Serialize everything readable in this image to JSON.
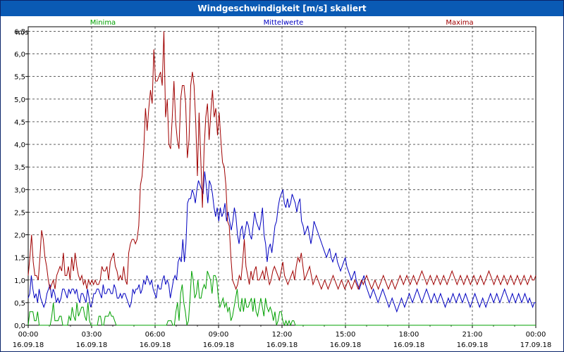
{
  "window": {
    "title": "Windgeschwindigkeit [m/s] skaliert"
  },
  "chart_data": {
    "type": "line",
    "title": "Windgeschwindigkeit [m/s] skaliert",
    "ylabel": "m/s",
    "ylim": [
      0,
      6.6
    ],
    "xlim": [
      "16.09.18 00:00",
      "17.09.18 00:00"
    ],
    "yticks": [
      "0,0",
      "0,5",
      "1,0",
      "1,5",
      "2,0",
      "2,5",
      "3,0",
      "3,5",
      "4,0",
      "4,5",
      "5,0",
      "5,5",
      "6,0",
      "6,5"
    ],
    "xticks": [
      {
        "time": "00:00",
        "date": "16.09.18"
      },
      {
        "time": "03:00",
        "date": "16.09.18"
      },
      {
        "time": "06:00",
        "date": "16.09.18"
      },
      {
        "time": "09:00",
        "date": "16.09.18"
      },
      {
        "time": "12:00",
        "date": "16.09.18"
      },
      {
        "time": "15:00",
        "date": "16.09.18"
      },
      {
        "time": "18:00",
        "date": "16.09.18"
      },
      {
        "time": "21:00",
        "date": "16.09.18"
      },
      {
        "time": "00:00",
        "date": "17.09.18"
      }
    ],
    "grid": true,
    "series": [
      {
        "name": "Minima",
        "color": "#00a000",
        "values": [
          0.0,
          0.3,
          0.3,
          0.3,
          0.1,
          0.1,
          0.3,
          0.0,
          0.0,
          0.0,
          0.0,
          0.0,
          0.0,
          0.0,
          0.0,
          0.2,
          0.5,
          0.1,
          0.1,
          0.1,
          0.2,
          0.2,
          0.0,
          0.0,
          0.0,
          0.0,
          0.2,
          0.1,
          0.4,
          0.2,
          0.1,
          0.5,
          0.2,
          0.3,
          0.4,
          0.4,
          0.2,
          0.1,
          0.5,
          0.1,
          0.0,
          0.0,
          0.0,
          0.0,
          0.0,
          0.2,
          0.2,
          0.0,
          0.0,
          0.2,
          0.2,
          0.2,
          0.3,
          0.2,
          0.2,
          0.1,
          0.0,
          0.0,
          0.0,
          0.0,
          0.0,
          0.0,
          0.0,
          0.0,
          0.0,
          0.0,
          0.0,
          0.0,
          0.0,
          0.0,
          0.0,
          0.0,
          0.0,
          0.0,
          0.0,
          0.0,
          0.0,
          0.0,
          0.0,
          0.0,
          0.0,
          0.0,
          0.0,
          0.0,
          0.0,
          0.0,
          0.0,
          0.0,
          0.0,
          0.1,
          0.1,
          0.1,
          0.0,
          0.0,
          0.3,
          0.5,
          0.1,
          0.7,
          0.9,
          0.5,
          0.3,
          0.0,
          0.1,
          0.6,
          1.2,
          1.0,
          0.6,
          0.7,
          1.0,
          0.6,
          0.6,
          0.8,
          0.9,
          0.8,
          1.2,
          1.1,
          1.0,
          0.7,
          1.1,
          1.1,
          1.0,
          0.6,
          0.4,
          0.5,
          0.6,
          0.4,
          0.5,
          0.3,
          0.4,
          0.1,
          0.2,
          0.4,
          0.6,
          0.8,
          0.4,
          0.3,
          0.6,
          0.3,
          0.6,
          0.4,
          0.4,
          0.5,
          0.6,
          0.3,
          0.6,
          0.3,
          0.2,
          0.4,
          0.6,
          0.4,
          0.2,
          0.6,
          0.4,
          0.3,
          0.4,
          0.3,
          0.1,
          0.3,
          0.0,
          0.1,
          0.3,
          0.3,
          0.1,
          0.0,
          0.1,
          0.0,
          0.1,
          0.0,
          0.1,
          0.1,
          0.0,
          0.0,
          0.0,
          0.0,
          0.0,
          0.0,
          0.0,
          0.0,
          0.0,
          0.0,
          0.0,
          0.0,
          0.0,
          0.0,
          0.0,
          0.0,
          0.0,
          0.0,
          0.0,
          0.0,
          0.0,
          0.0,
          0.0,
          0.0,
          0.0,
          0.0,
          0.0,
          0.0,
          0.0,
          0.0,
          0.0,
          0.0,
          0.0,
          0.0,
          0.0,
          0.0,
          0.0,
          0.0,
          0.0,
          0.0,
          0.0,
          0.0,
          0.0,
          0.0,
          0.0,
          0.0,
          0.0,
          0.0,
          0.0,
          0.0,
          0.0,
          0.0,
          0.0,
          0.0,
          0.0,
          0.0,
          0.0,
          0.0,
          0.0,
          0.0,
          0.0,
          0.0,
          0.0,
          0.0,
          0.0,
          0.0,
          0.0,
          0.0,
          0.0,
          0.0,
          0.0,
          0.0,
          0.0,
          0.0,
          0.0,
          0.0,
          0.0,
          0.0,
          0.0,
          0.0,
          0.0,
          0.0,
          0.0,
          0.0,
          0.0,
          0.0,
          0.0,
          0.0,
          0.0,
          0.0,
          0.0,
          0.0,
          0.0,
          0.0,
          0.0,
          0.0,
          0.0,
          0.0,
          0.0,
          0.0,
          0.0,
          0.0,
          0.0,
          0.0,
          0.0,
          0.0,
          0.0,
          0.0,
          0.0,
          0.0,
          0.0,
          0.0,
          0.0,
          0.0,
          0.0,
          0.0,
          0.0,
          0.0,
          0.0,
          0.0,
          0.0,
          0.0,
          0.0,
          0.0,
          0.0,
          0.0,
          0.0,
          0.0,
          0.0,
          0.0,
          0.0,
          0.0,
          0.0,
          0.0,
          0.0,
          0.0,
          0.0,
          0.0,
          0.0,
          0.0,
          0.0,
          0.0,
          0.0,
          0.0,
          0.0,
          0.0,
          0.0,
          0.0,
          0.0,
          0.0,
          0.0,
          0.0,
          0.0,
          0.0
        ]
      },
      {
        "name": "Mittelwerte",
        "color": "#0000c0",
        "values": [
          0.6,
          0.7,
          1.1,
          0.8,
          0.6,
          0.7,
          0.5,
          0.8,
          0.6,
          0.5,
          0.4,
          0.5,
          0.7,
          0.8,
          0.9,
          0.6,
          0.8,
          0.7,
          0.5,
          0.6,
          0.5,
          0.6,
          0.8,
          0.8,
          0.7,
          0.6,
          0.8,
          0.7,
          0.8,
          0.8,
          0.7,
          0.8,
          0.6,
          0.5,
          0.7,
          0.7,
          0.6,
          0.5,
          0.8,
          0.6,
          0.4,
          0.5,
          0.7,
          0.7,
          0.8,
          0.8,
          0.7,
          0.6,
          0.9,
          0.7,
          0.7,
          0.8,
          0.8,
          0.7,
          0.7,
          0.9,
          0.8,
          0.6,
          0.6,
          0.7,
          0.6,
          0.7,
          0.7,
          0.6,
          0.5,
          0.4,
          0.5,
          0.8,
          0.7,
          0.8,
          0.8,
          0.9,
          0.7,
          0.8,
          1.0,
          0.9,
          1.1,
          1.0,
          0.9,
          1.0,
          0.8,
          0.7,
          0.6,
          0.9,
          0.8,
          0.8,
          1.0,
          1.1,
          0.9,
          1.0,
          0.9,
          0.6,
          0.8,
          1.0,
          1.1,
          1.0,
          1.4,
          1.5,
          1.4,
          1.9,
          1.4,
          1.8,
          2.7,
          2.8,
          2.8,
          3.0,
          2.9,
          2.7,
          3.0,
          3.2,
          3.1,
          3.0,
          2.9,
          3.4,
          3.1,
          2.7,
          3.2,
          3.1,
          2.9,
          2.6,
          2.4,
          2.6,
          2.3,
          2.6,
          2.4,
          2.5,
          2.7,
          2.3,
          2.5,
          2.3,
          2.1,
          2.3,
          2.6,
          2.4,
          2.0,
          1.8,
          2.1,
          2.2,
          1.9,
          2.1,
          2.3,
          2.2,
          2.0,
          1.9,
          2.2,
          2.5,
          2.3,
          2.2,
          2.1,
          2.3,
          2.6,
          2.0,
          1.8,
          1.4,
          1.7,
          1.8,
          1.6,
          1.9,
          2.2,
          2.3,
          2.6,
          2.8,
          2.9,
          3.0,
          2.7,
          2.6,
          2.8,
          2.6,
          2.7,
          2.9,
          2.8,
          2.7,
          2.5,
          2.7,
          2.8,
          2.3,
          2.2,
          2.0,
          2.1,
          2.2,
          2.0,
          1.8,
          2.0,
          2.3,
          2.2,
          2.1,
          2.0,
          1.9,
          1.8,
          1.7,
          1.6,
          1.5,
          1.6,
          1.7,
          1.5,
          1.4,
          1.5,
          1.6,
          1.4,
          1.3,
          1.2,
          1.3,
          1.4,
          1.5,
          1.3,
          1.2,
          1.1,
          1.0,
          1.1,
          1.2,
          1.0,
          0.9,
          0.8,
          0.9,
          1.0,
          1.1,
          0.9,
          0.8,
          0.7,
          0.6,
          0.7,
          0.8,
          0.7,
          0.6,
          0.5,
          0.6,
          0.7,
          0.8,
          0.7,
          0.6,
          0.5,
          0.4,
          0.5,
          0.6,
          0.5,
          0.4,
          0.3,
          0.4,
          0.5,
          0.6,
          0.5,
          0.4,
          0.5,
          0.6,
          0.7,
          0.6,
          0.5,
          0.6,
          0.7,
          0.8,
          0.7,
          0.6,
          0.5,
          0.6,
          0.7,
          0.8,
          0.7,
          0.6,
          0.5,
          0.6,
          0.7,
          0.6,
          0.5,
          0.6,
          0.7,
          0.6,
          0.5,
          0.4,
          0.5,
          0.6,
          0.5,
          0.6,
          0.7,
          0.6,
          0.5,
          0.6,
          0.7,
          0.6,
          0.5,
          0.6,
          0.7,
          0.6,
          0.5,
          0.4,
          0.5,
          0.6,
          0.7,
          0.6,
          0.5,
          0.4,
          0.5,
          0.6,
          0.5,
          0.4,
          0.5,
          0.6,
          0.7,
          0.6,
          0.5,
          0.6,
          0.7,
          0.6,
          0.5,
          0.6,
          0.7,
          0.8,
          0.7,
          0.6,
          0.5,
          0.6,
          0.7,
          0.6,
          0.5,
          0.6,
          0.7,
          0.6,
          0.5,
          0.6,
          0.7,
          0.6,
          0.5,
          0.6,
          0.5,
          0.4,
          0.5,
          0.5
        ]
      },
      {
        "name": "Maxima",
        "color": "#a00000",
        "values": [
          1.1,
          1.5,
          2.0,
          1.4,
          1.1,
          1.1,
          1.0,
          1.5,
          2.1,
          1.9,
          1.5,
          1.3,
          1.0,
          0.8,
          0.9,
          1.0,
          0.8,
          1.1,
          1.2,
          1.3,
          1.2,
          1.6,
          1.1,
          1.1,
          1.3,
          1.0,
          1.5,
          1.2,
          1.6,
          1.3,
          1.1,
          1.0,
          1.1,
          0.9,
          1.0,
          0.8,
          1.0,
          0.9,
          1.0,
          0.9,
          1.0,
          0.9,
          0.9,
          1.0,
          1.3,
          1.2,
          1.2,
          1.3,
          1.0,
          1.4,
          1.5,
          1.6,
          1.3,
          1.2,
          1.0,
          1.1,
          1.0,
          1.3,
          1.0,
          0.9,
          1.6,
          1.8,
          1.9,
          1.9,
          1.8,
          1.9,
          2.2,
          3.1,
          3.3,
          3.9,
          4.8,
          4.3,
          4.8,
          5.2,
          4.9,
          6.1,
          5.4,
          5.4,
          5.5,
          5.6,
          5.3,
          6.5,
          4.6,
          5.0,
          4.0,
          3.9,
          4.6,
          5.4,
          4.5,
          4.1,
          3.9,
          5.0,
          5.3,
          5.3,
          4.9,
          3.7,
          4.1,
          5.3,
          5.6,
          5.3,
          4.5,
          3.3,
          4.7,
          3.7,
          2.6,
          3.9,
          4.6,
          4.9,
          4.1,
          4.7,
          5.2,
          4.6,
          4.8,
          4.2,
          4.7,
          4.1,
          3.6,
          3.5,
          3.1,
          2.3,
          2.2,
          1.5,
          1.0,
          0.9,
          0.8,
          0.9,
          1.1,
          1.0,
          1.4,
          1.9,
          1.3,
          1.1,
          0.9,
          1.2,
          1.0,
          1.2,
          1.3,
          1.0,
          1.0,
          1.1,
          1.2,
          1.0,
          1.3,
          1.1,
          0.9,
          1.0,
          1.2,
          1.3,
          1.2,
          1.1,
          1.0,
          1.2,
          1.4,
          1.1,
          1.0,
          0.9,
          1.0,
          1.1,
          1.2,
          1.0,
          1.3,
          1.5,
          1.4,
          1.6,
          1.3,
          1.0,
          1.1,
          1.2,
          1.3,
          1.1,
          0.9,
          1.0,
          1.1,
          1.0,
          0.9,
          0.8,
          0.9,
          1.0,
          0.9,
          0.8,
          0.9,
          1.0,
          1.1,
          1.0,
          0.9,
          0.8,
          0.9,
          1.0,
          0.9,
          0.8,
          0.9,
          1.0,
          0.9,
          0.8,
          0.9,
          1.0,
          0.9,
          0.8,
          0.9,
          1.0,
          0.9,
          1.0,
          1.1,
          1.0,
          0.9,
          0.8,
          0.9,
          1.0,
          0.9,
          0.8,
          0.9,
          1.0,
          1.1,
          1.0,
          0.9,
          0.8,
          0.9,
          1.0,
          0.9,
          0.8,
          0.9,
          1.0,
          1.1,
          1.0,
          0.9,
          1.0,
          1.1,
          1.0,
          0.9,
          1.0,
          1.1,
          1.0,
          0.9,
          1.0,
          1.1,
          1.2,
          1.1,
          1.0,
          0.9,
          1.0,
          1.1,
          1.0,
          0.9,
          1.0,
          1.1,
          1.0,
          0.9,
          1.0,
          1.1,
          1.0,
          0.9,
          1.0,
          1.1,
          1.2,
          1.1,
          1.0,
          0.9,
          1.0,
          1.1,
          1.0,
          0.9,
          1.0,
          1.1,
          1.0,
          0.9,
          1.0,
          1.1,
          1.0,
          0.9,
          1.0,
          1.1,
          1.0,
          0.9,
          1.0,
          1.1,
          1.2,
          1.1,
          1.0,
          0.9,
          1.0,
          1.1,
          1.0,
          0.9,
          1.0,
          1.1,
          1.0,
          0.9,
          1.0,
          1.1,
          1.0,
          0.9,
          1.0,
          1.1,
          1.0,
          0.9,
          1.0,
          1.1,
          1.0,
          0.9,
          1.0,
          1.1,
          1.0,
          1.0,
          1.1
        ]
      }
    ]
  }
}
